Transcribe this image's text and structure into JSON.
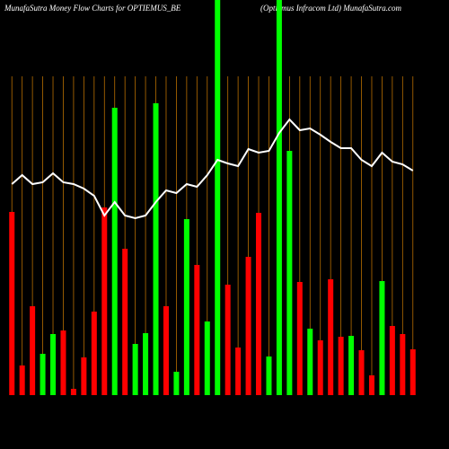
{
  "chart_data": {
    "type": "bar",
    "title": "MunafaSutra  Money Flow  Charts for OPTIEMUS_BE",
    "subtitle": "(Optiemus Infracom Ltd) MunafaSutra.com",
    "values": [
      204,
      33,
      99,
      46,
      68,
      72,
      7,
      42,
      93,
      209,
      320,
      163,
      57,
      69,
      325,
      99,
      26,
      196,
      145,
      82,
      440,
      123,
      53,
      154,
      203,
      43,
      440,
      272,
      126,
      74,
      61,
      129,
      65,
      66,
      50,
      22,
      127,
      77,
      68,
      51
    ],
    "colors": [
      "#ff0000",
      "#ff0000",
      "#ff0000",
      "#00ff00",
      "#00ff00",
      "#ff0000",
      "#ff0000",
      "#ff0000",
      "#ff0000",
      "#ff0000",
      "#00ff00",
      "#ff0000",
      "#00ff00",
      "#00ff00",
      "#00ff00",
      "#ff0000",
      "#00ff00",
      "#00ff00",
      "#ff0000",
      "#00ff00",
      "#00ff00",
      "#ff0000",
      "#ff0000",
      "#ff0000",
      "#ff0000",
      "#00ff00",
      "#00ff00",
      "#00ff00",
      "#ff0000",
      "#00ff00",
      "#ff0000",
      "#ff0000",
      "#ff0000",
      "#00ff00",
      "#ff0000",
      "#ff0000",
      "#00ff00",
      "#ff0000",
      "#ff0000",
      "#ff0000"
    ],
    "line_values": [
      235,
      245,
      235,
      237,
      247,
      237,
      235,
      230,
      222,
      200,
      215,
      200,
      197,
      200,
      215,
      228,
      225,
      235,
      232,
      245,
      262,
      258,
      255,
      274,
      270,
      272,
      292,
      307,
      295,
      297,
      290,
      282,
      275,
      275,
      262,
      255,
      270,
      260,
      257,
      250
    ],
    "line_color": "#ffffff",
    "ylim": [
      0,
      440
    ],
    "grid": true,
    "grid_color": "#b86e00"
  }
}
